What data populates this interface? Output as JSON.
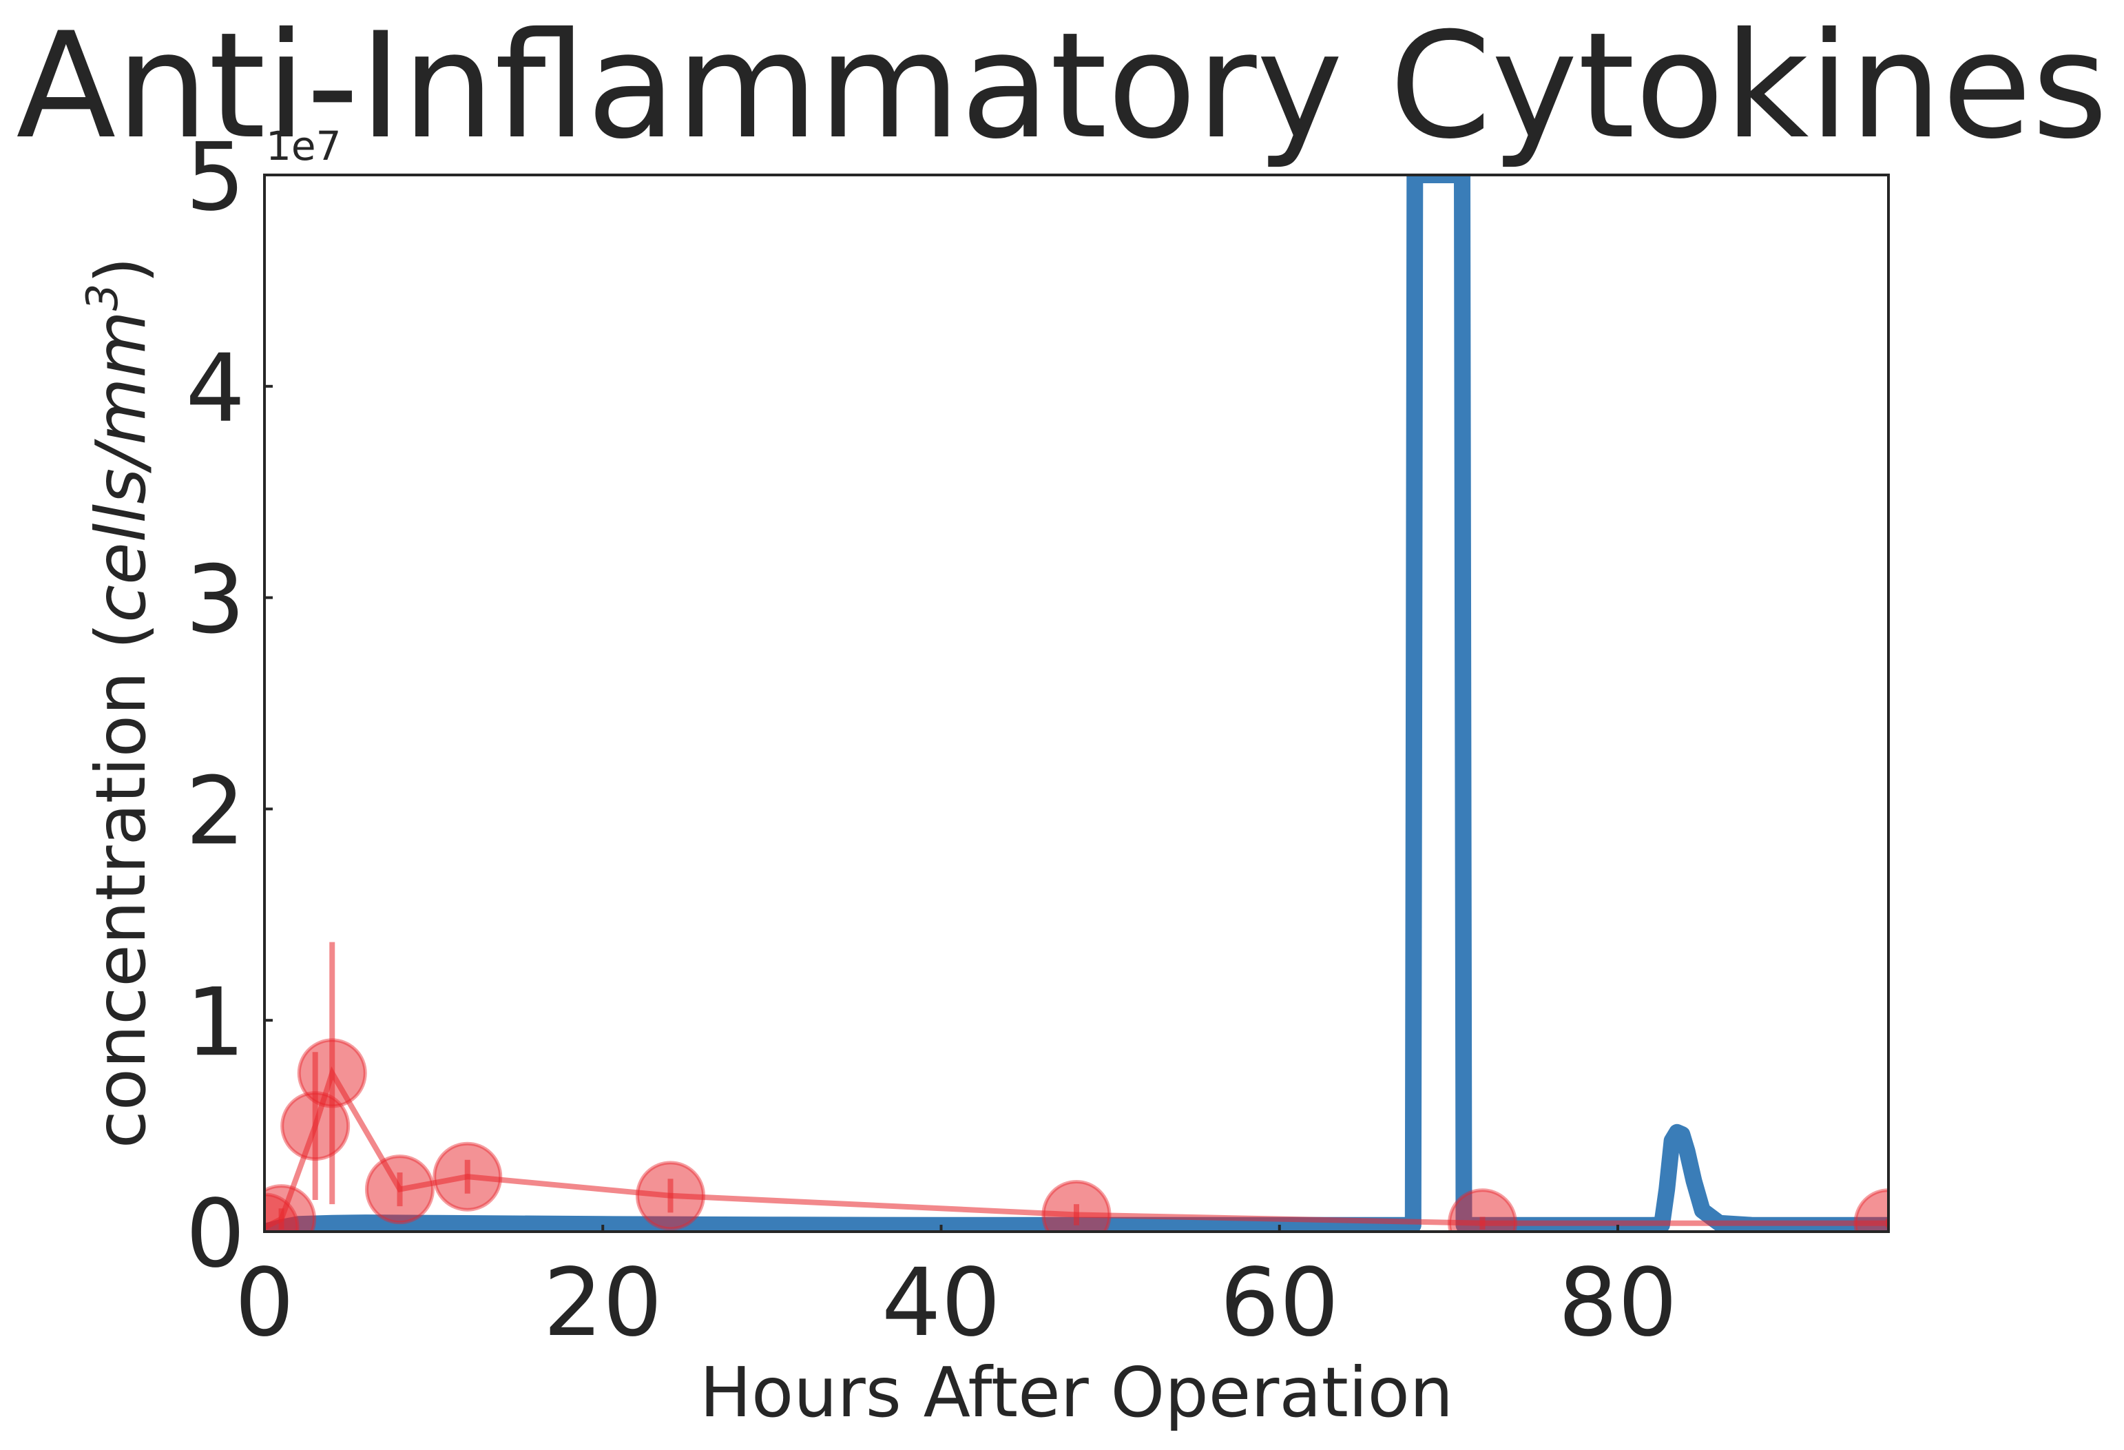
{
  "chart_data": {
    "type": "line",
    "title": "Anti-Inflammatory Cytokines",
    "xlabel": "Hours After Operation",
    "ylabel": "concentration (cells/mm³)",
    "ylabel_parts": {
      "prefix": "concentration (",
      "unit": "cells/mm",
      "exp": "3",
      "suffix": ")"
    },
    "y_offset_label": "1e7",
    "xlim": [
      0,
      96
    ],
    "ylim": [
      0,
      50000000
    ],
    "x_ticks": [
      0,
      20,
      40,
      60,
      80
    ],
    "x_tick_labels": [
      "0",
      "20",
      "40",
      "60",
      "80"
    ],
    "y_ticks": [
      0,
      10000000,
      20000000,
      30000000,
      40000000,
      50000000
    ],
    "y_tick_labels": [
      "0",
      "1",
      "2",
      "3",
      "4",
      "5"
    ],
    "grid": false,
    "series": [
      {
        "kind": "model-line",
        "color": "#3a7db8",
        "x": [
          0,
          1,
          2,
          4,
          6,
          10,
          20,
          30,
          40,
          50,
          60,
          67.9,
          68.0,
          70.8,
          70.9,
          74,
          78,
          82,
          82.6,
          82.9,
          83.2,
          83.5,
          83.8,
          84.1,
          84.5,
          85,
          86,
          88,
          92,
          96
        ],
        "y": [
          0,
          200000,
          350000,
          400000,
          420000,
          400000,
          350000,
          320000,
          300000,
          300000,
          300000,
          300000,
          50000000,
          50000000,
          300000,
          300000,
          300000,
          300000,
          320000,
          2000000,
          4300000,
          4700000,
          4600000,
          3800000,
          2400000,
          1000000,
          400000,
          300000,
          300000,
          300000
        ]
      },
      {
        "kind": "observed-data",
        "color": "#e8262c",
        "x": [
          0,
          1,
          3,
          4,
          8,
          12,
          24,
          48,
          72,
          96
        ],
        "y": [
          200000,
          600000,
          5000000,
          7500000,
          2000000,
          2600000,
          1700000,
          800000,
          400000,
          400000
        ],
        "err": [
          0,
          500000,
          3500000,
          6200000,
          800000,
          800000,
          800000,
          500000,
          300000,
          200000
        ]
      }
    ]
  }
}
